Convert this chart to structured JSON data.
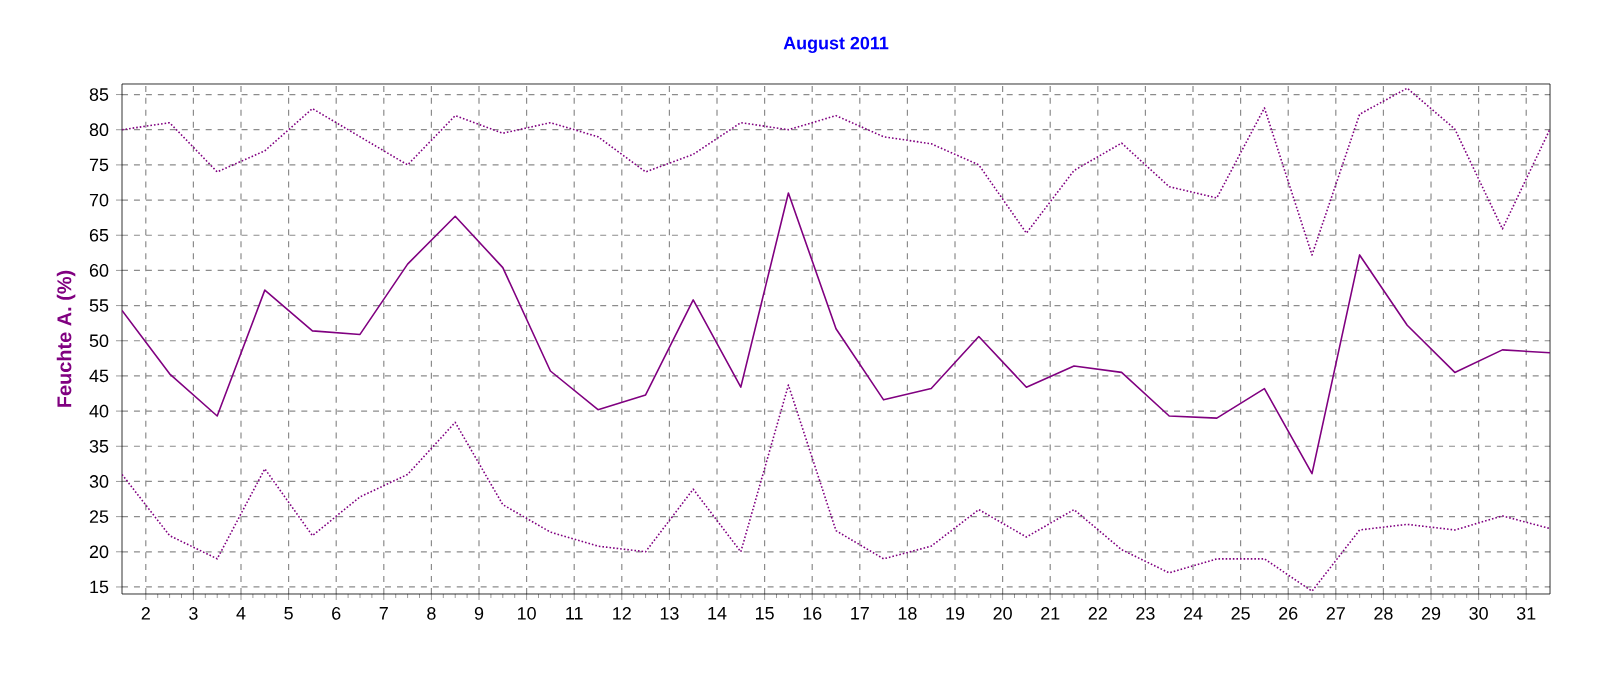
{
  "chart_data": {
    "type": "line",
    "title": "August 2011",
    "ylabel": "Feuchte A. (%)",
    "x": [
      1.5,
      2.5,
      3.5,
      4.5,
      5.5,
      6.5,
      7.5,
      8.5,
      9.5,
      10.5,
      11.5,
      12.5,
      13.5,
      14.5,
      15.5,
      16.5,
      17.5,
      18.5,
      19.5,
      20.5,
      21.5,
      22.5,
      23.5,
      24.5,
      25.5,
      26.5,
      27.5,
      28.5,
      29.5,
      30.5,
      31.5
    ],
    "series": [
      {
        "color": "#800080",
        "line_style": "dotted",
        "values": [
          80,
          81,
          74,
          77,
          83,
          79,
          75,
          82,
          79.5,
          81,
          79,
          74,
          76.5,
          81,
          80,
          82,
          79,
          78,
          75,
          65.3,
          74.2,
          78.1,
          71.9,
          70.3,
          83.1,
          62.2,
          82.2,
          85.9,
          80.1,
          65.9,
          80.1
        ]
      },
      {
        "color": "#800080",
        "line_style": "solid",
        "values": [
          54.3,
          45.3,
          39.3,
          57.2,
          51.4,
          50.9,
          60.9,
          67.7,
          60.4,
          45.7,
          40.2,
          42.3,
          55.8,
          43.4,
          71,
          51.7,
          41.6,
          43.2,
          50.6,
          43.4,
          46.4,
          45.5,
          39.3,
          39,
          43.2,
          31.1,
          62.2,
          52.2,
          45.5,
          48.7,
          48.3
        ]
      },
      {
        "color": "#800080",
        "line_style": "dotted",
        "values": [
          31,
          22.3,
          19,
          31.8,
          22.3,
          27.8,
          31,
          38.4,
          26.7,
          22.8,
          20.8,
          20,
          28.9,
          20,
          43.7,
          23,
          19,
          20.8,
          26,
          22.1,
          26,
          20.3,
          17,
          19,
          19,
          14.4,
          23.1,
          23.9,
          23.1,
          25.1,
          23.3
        ]
      }
    ],
    "xlim": [
      1.5,
      31.5
    ],
    "xticks": [
      2,
      3,
      4,
      5,
      6,
      7,
      8,
      9,
      10,
      11,
      12,
      13,
      14,
      15,
      16,
      17,
      18,
      19,
      20,
      21,
      22,
      23,
      24,
      25,
      26,
      27,
      28,
      29,
      30,
      31
    ],
    "ylim": [
      14,
      86.5
    ],
    "yticks": [
      15,
      20,
      25,
      30,
      35,
      40,
      45,
      50,
      55,
      60,
      65,
      70,
      75,
      80,
      85
    ],
    "grid": true,
    "marker": "none"
  }
}
